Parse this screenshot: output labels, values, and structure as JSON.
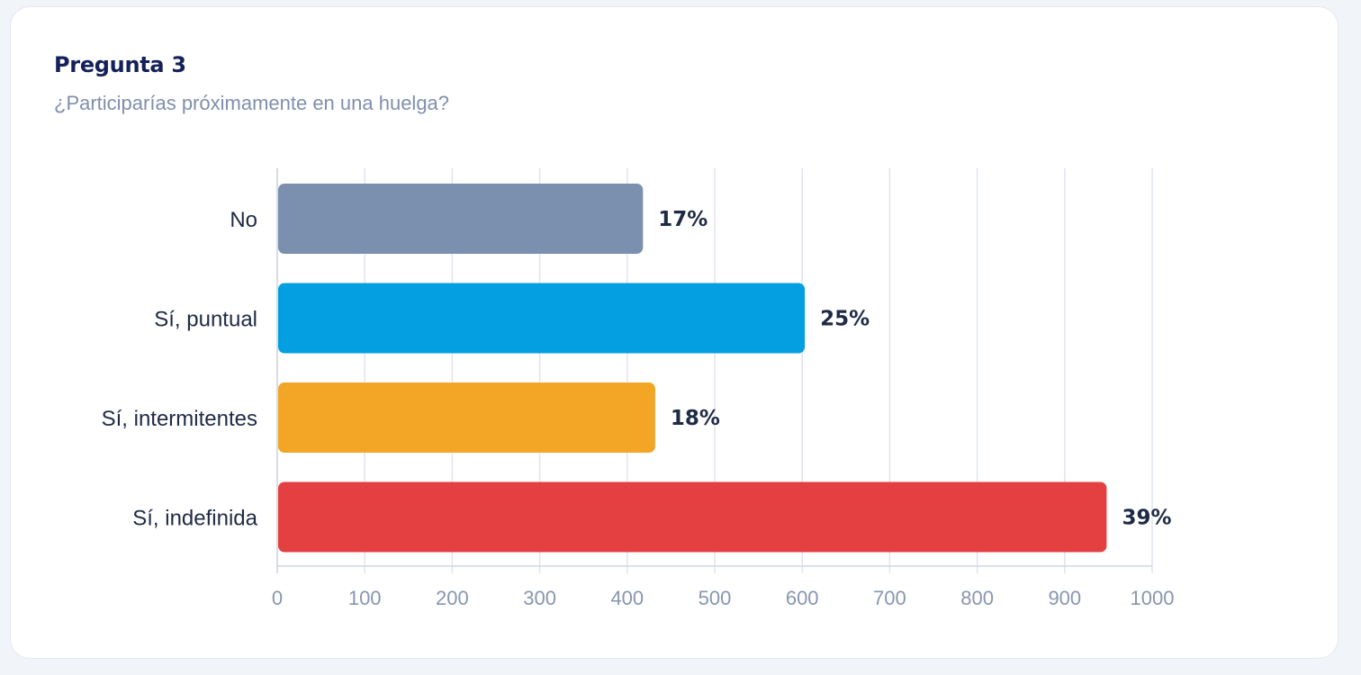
{
  "card": {
    "title": "Pregunta 3",
    "subtitle": "¿Participarías próximamente en una huelga?"
  },
  "chart_data": {
    "type": "bar",
    "orientation": "horizontal",
    "categories": [
      "No",
      "Sí, puntual",
      "Sí, intermitentes",
      "Sí, indefinida"
    ],
    "values": [
      418,
      603,
      432,
      948
    ],
    "labels": [
      "17%",
      "25%",
      "18%",
      "39%"
    ],
    "colors": [
      "#7b8fae",
      "#039fe0",
      "#f3a625",
      "#e44041"
    ],
    "xlim": [
      0,
      1000
    ],
    "xticks": [
      0,
      100,
      200,
      300,
      400,
      500,
      600,
      700,
      800,
      900,
      1000
    ],
    "grid": true
  }
}
